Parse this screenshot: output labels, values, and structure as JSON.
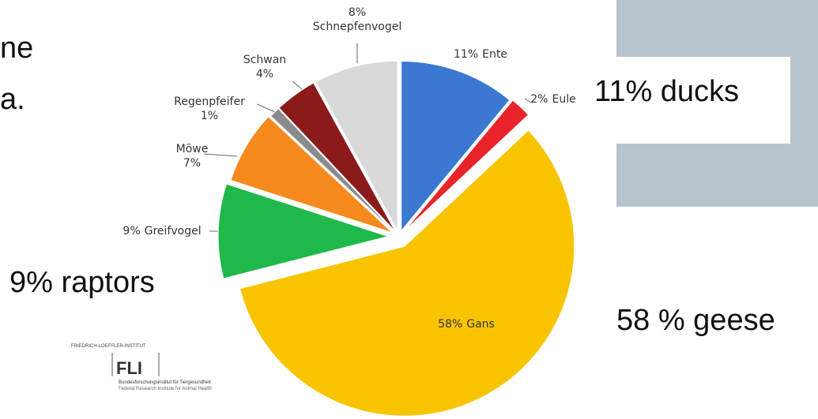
{
  "slide_text": {
    "left_line_1": "ne",
    "left_line_2": "a."
  },
  "annotations": [
    "11% ducks",
    "9% raptors",
    "58 % geese"
  ],
  "logo": {
    "name": "FRIEDRICH-LOEFFLER-INSTITUT",
    "abbr": "FLI",
    "line1": "Bundesforschungsinstitut für Tiergesundheit",
    "line2": "Federal Research Institute for Animal Health"
  },
  "chart_data": {
    "type": "pie",
    "categories": [
      "Ente",
      "Eule",
      "Gans",
      "Greifvogel",
      "Möwe",
      "Regenpfeifer",
      "Schwan",
      "Schnepfenvogel"
    ],
    "values": [
      11,
      2,
      58,
      9,
      7,
      1,
      4,
      8
    ],
    "value_labels": [
      "11%",
      "2%",
      "58%",
      "9%",
      "7%",
      "1%",
      "4%",
      "8%"
    ],
    "colors": [
      "#3b78d2",
      "#e8242a",
      "#f8c400",
      "#1fb84a",
      "#f58a1f",
      "#8a8a8a",
      "#8b1a1a",
      "#d9d9d9"
    ]
  }
}
